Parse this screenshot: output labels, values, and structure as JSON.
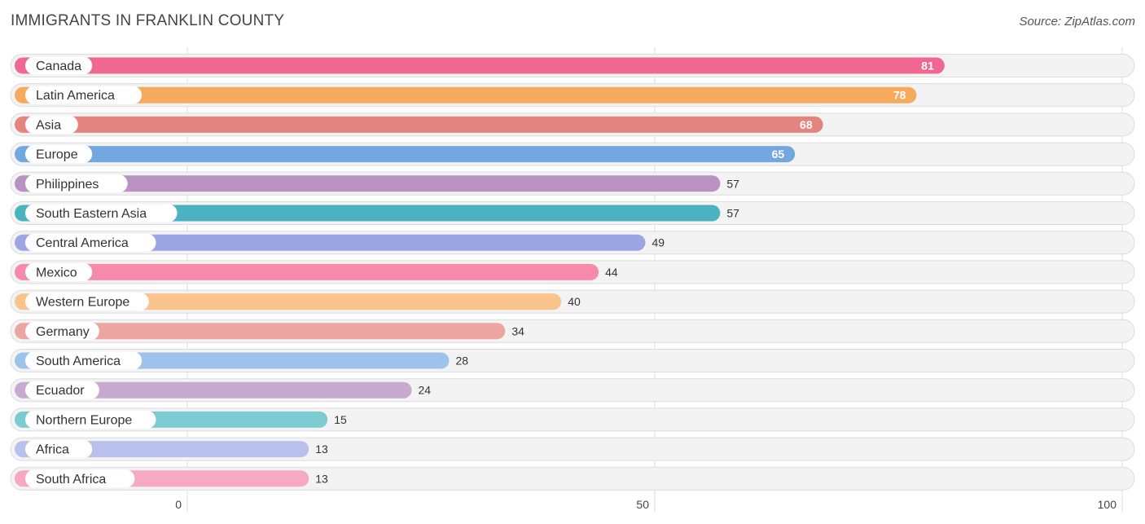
{
  "header": {
    "title": "IMMIGRANTS IN FRANKLIN COUNTY",
    "source": "Source: ZipAtlas.com"
  },
  "chart_data": {
    "type": "bar",
    "orientation": "horizontal",
    "title": "IMMIGRANTS IN FRANKLIN COUNTY",
    "xlabel": "",
    "ylabel": "",
    "xlim": [
      0,
      100
    ],
    "xticks": [
      0,
      50,
      100
    ],
    "categories": [
      "Canada",
      "Latin America",
      "Asia",
      "Europe",
      "Philippines",
      "South Eastern Asia",
      "Central America",
      "Mexico",
      "Western Europe",
      "Germany",
      "South America",
      "Ecuador",
      "Northern Europe",
      "Africa",
      "South Africa"
    ],
    "values": [
      81,
      78,
      68,
      65,
      57,
      57,
      49,
      44,
      40,
      34,
      28,
      24,
      15,
      13,
      13
    ],
    "colors": [
      "#f06892",
      "#f7aa5d",
      "#e5837f",
      "#72a8df",
      "#b992c2",
      "#4bb3c0",
      "#9ca6e2",
      "#f68aab",
      "#f9c48c",
      "#eda5a2",
      "#9ec3ea",
      "#c8a9cf",
      "#7dcbd2",
      "#b8c1ed",
      "#f7a8c2"
    ]
  }
}
